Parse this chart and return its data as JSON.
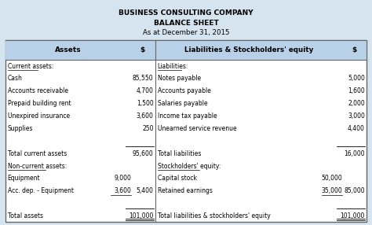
{
  "title_line1": "BUSINESS CONSULTING COMPANY",
  "title_line2": "BALANCE SHEET",
  "title_line3": "As at December 31, 2015",
  "bg_color": "#d6e4f0",
  "header_bg": "#b8d0e8",
  "table_bg": "#ffffff",
  "border_color": "#666666",
  "left_col_header": "Assets",
  "right_col_header": "Liabilities & Stockholders' equity",
  "dollar_sign": "$",
  "left_rows": [
    {
      "label": "Current assets:",
      "value": "",
      "sub_value": "",
      "underline_label": true,
      "underline_val": false,
      "is_total": false,
      "is_grand_total": false
    },
    {
      "label": "Cash",
      "value": "85,550",
      "sub_value": "",
      "underline_label": false,
      "underline_val": false,
      "is_total": false,
      "is_grand_total": false
    },
    {
      "label": "Accounts receivable",
      "value": "4,700",
      "sub_value": "",
      "underline_label": false,
      "underline_val": false,
      "is_total": false,
      "is_grand_total": false
    },
    {
      "label": "Prepaid building rent",
      "value": "1,500",
      "sub_value": "",
      "underline_label": false,
      "underline_val": false,
      "is_total": false,
      "is_grand_total": false
    },
    {
      "label": "Unexpired insurance",
      "value": "3,600",
      "sub_value": "",
      "underline_label": false,
      "underline_val": false,
      "is_total": false,
      "is_grand_total": false
    },
    {
      "label": "Supplies",
      "value": "250",
      "sub_value": "",
      "underline_label": false,
      "underline_val": false,
      "is_total": false,
      "is_grand_total": false
    },
    {
      "label": "",
      "value": "",
      "sub_value": "",
      "underline_label": false,
      "underline_val": false,
      "is_total": false,
      "is_grand_total": false
    },
    {
      "label": "Total current assets",
      "value": "95,600",
      "sub_value": "",
      "underline_label": false,
      "underline_val": false,
      "is_total": true,
      "is_grand_total": false
    },
    {
      "label": "Non-current assets:",
      "value": "",
      "sub_value": "",
      "underline_label": true,
      "underline_val": false,
      "is_total": false,
      "is_grand_total": false
    },
    {
      "label": "Equipment",
      "value": "",
      "sub_value": "9,000",
      "underline_label": false,
      "underline_val": false,
      "is_total": false,
      "is_grand_total": false
    },
    {
      "label": "Acc. dep. - Equipment",
      "value": "5,400",
      "sub_value": "3,600",
      "underline_label": false,
      "underline_val": true,
      "is_total": false,
      "is_grand_total": false
    },
    {
      "label": "",
      "value": "",
      "sub_value": "",
      "underline_label": false,
      "underline_val": false,
      "is_total": false,
      "is_grand_total": false
    },
    {
      "label": "Total assets",
      "value": "101,000",
      "sub_value": "",
      "underline_label": false,
      "underline_val": false,
      "is_total": true,
      "is_grand_total": true
    }
  ],
  "right_rows": [
    {
      "label": "Liabilities:",
      "value": "",
      "sub_value": "",
      "underline_label": true,
      "underline_val": false,
      "is_total": false,
      "is_grand_total": false
    },
    {
      "label": "Notes payable",
      "value": "5,000",
      "sub_value": "",
      "underline_label": false,
      "underline_val": false,
      "is_total": false,
      "is_grand_total": false
    },
    {
      "label": "Accounts payable",
      "value": "1,600",
      "sub_value": "",
      "underline_label": false,
      "underline_val": false,
      "is_total": false,
      "is_grand_total": false
    },
    {
      "label": "Salaries payable",
      "value": "2,000",
      "sub_value": "",
      "underline_label": false,
      "underline_val": false,
      "is_total": false,
      "is_grand_total": false
    },
    {
      "label": "Income tax payable",
      "value": "3,000",
      "sub_value": "",
      "underline_label": false,
      "underline_val": false,
      "is_total": false,
      "is_grand_total": false
    },
    {
      "label": "Unearned service revenue",
      "value": "4,400",
      "sub_value": "",
      "underline_label": false,
      "underline_val": false,
      "is_total": false,
      "is_grand_total": false
    },
    {
      "label": "",
      "value": "",
      "sub_value": "",
      "underline_label": false,
      "underline_val": false,
      "is_total": false,
      "is_grand_total": false
    },
    {
      "label": "Total liabilities",
      "value": "16,000",
      "sub_value": "",
      "underline_label": false,
      "underline_val": false,
      "is_total": true,
      "is_grand_total": false
    },
    {
      "label": "Stockholders' equity:",
      "value": "",
      "sub_value": "",
      "underline_label": true,
      "underline_val": false,
      "is_total": false,
      "is_grand_total": false
    },
    {
      "label": "Capital stock",
      "value": "",
      "sub_value": "50,000",
      "underline_label": false,
      "underline_val": false,
      "is_total": false,
      "is_grand_total": false
    },
    {
      "label": "Retained earnings",
      "value": "85,000",
      "sub_value": "35,000",
      "underline_label": false,
      "underline_val": true,
      "is_total": false,
      "is_grand_total": false
    },
    {
      "label": "",
      "value": "",
      "sub_value": "",
      "underline_label": false,
      "underline_val": false,
      "is_total": false,
      "is_grand_total": false
    },
    {
      "label": "Total liabilities & stockholders' equity",
      "value": "101,000",
      "sub_value": "",
      "underline_label": false,
      "underline_val": false,
      "is_total": true,
      "is_grand_total": true
    }
  ]
}
